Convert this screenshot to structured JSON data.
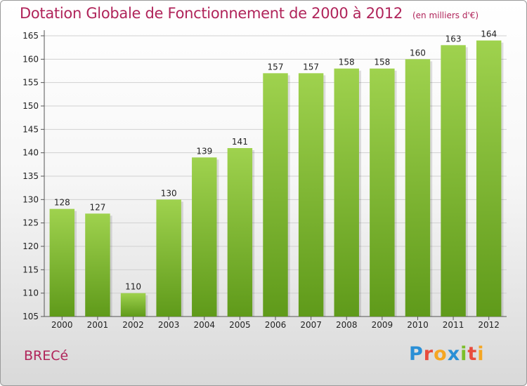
{
  "title": "Dotation Globale de Fonctionnement de 2000 à 2012",
  "subtitle": "(en milliers d'€)",
  "commune": "BRECé",
  "logo": {
    "text": "Proxiti",
    "letters": [
      {
        "ch": "P",
        "color": "#2a8fd6"
      },
      {
        "ch": "r",
        "color": "#e84c3d"
      },
      {
        "ch": "o",
        "color": "#f5a623"
      },
      {
        "ch": "x",
        "color": "#2a8fd6"
      },
      {
        "ch": "i",
        "color": "#7cbf2a"
      },
      {
        "ch": "t",
        "color": "#e84c3d"
      },
      {
        "ch": "i",
        "color": "#f5a623"
      }
    ]
  },
  "chart_data": {
    "type": "bar",
    "categories": [
      "2000",
      "2001",
      "2002",
      "2003",
      "2004",
      "2005",
      "2006",
      "2007",
      "2008",
      "2009",
      "2010",
      "2011",
      "2012"
    ],
    "values": [
      128,
      127,
      110,
      130,
      139,
      141,
      157,
      157,
      158,
      158,
      160,
      163,
      164
    ],
    "ylim": [
      105,
      165
    ],
    "yticks": [
      105,
      110,
      115,
      120,
      125,
      130,
      135,
      140,
      145,
      150,
      155,
      160,
      165
    ],
    "grid": true,
    "bar_color_light": "#9fd24e",
    "bar_color_dark": "#5f9a1a",
    "title": "Dotation Globale de Fonctionnement de 2000 à 2012",
    "xlabel": "",
    "ylabel": ""
  }
}
